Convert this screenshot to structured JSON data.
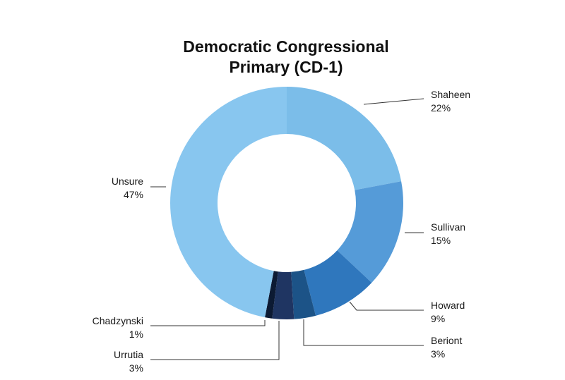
{
  "chart_data": {
    "type": "pie",
    "title_line1": "Democratic Congressional",
    "title_line2": "Primary (CD-1)",
    "slices": [
      {
        "name": "Shaheen",
        "value": 22,
        "label": "22%",
        "color": "#7bbde9"
      },
      {
        "name": "Sullivan",
        "value": 15,
        "label": "15%",
        "color": "#559bd8"
      },
      {
        "name": "Howard",
        "value": 9,
        "label": "9%",
        "color": "#2f77bd"
      },
      {
        "name": "Beriont",
        "value": 3,
        "label": "3%",
        "color": "#1c5387"
      },
      {
        "name": "Urrutia",
        "value": 3,
        "label": "3%",
        "color": "#1f3562"
      },
      {
        "name": "Chadzynski",
        "value": 1,
        "label": "1%",
        "color": "#0c1a33"
      },
      {
        "name": "Unsure",
        "value": 47,
        "label": "47%",
        "color": "#88c6ef"
      }
    ]
  }
}
